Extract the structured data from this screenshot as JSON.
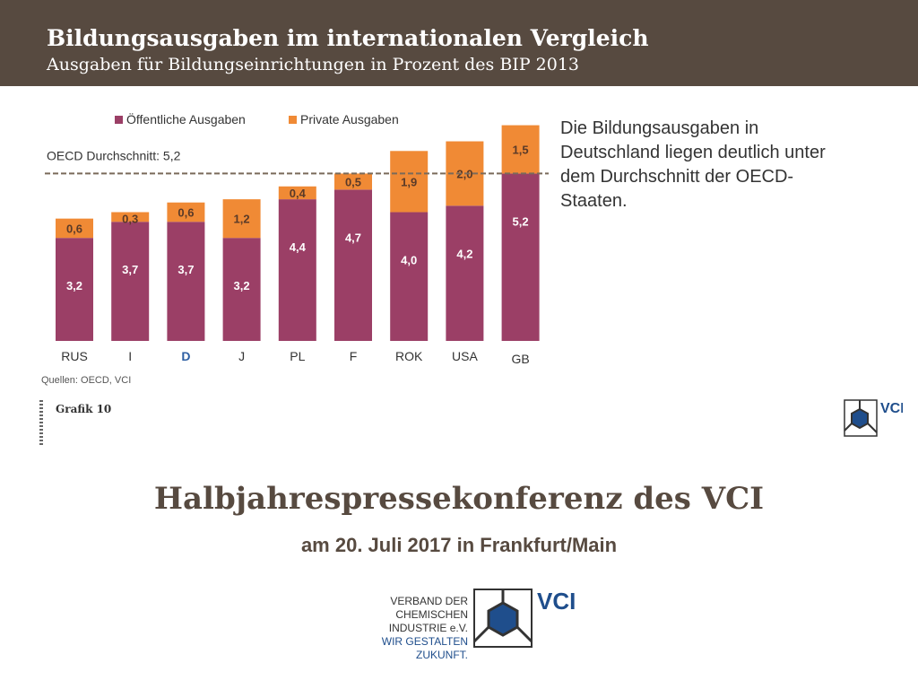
{
  "header": {
    "title": "Bildungsausgaben im internationalen Vergleich",
    "subtitle": "Ausgaben für Bildungseinrichtungen in Prozent des BIP 2013"
  },
  "chart_data": {
    "type": "bar",
    "stacked": true,
    "categories": [
      "RUS",
      "I",
      "D",
      "J",
      "PL",
      "F",
      "ROK",
      "USA",
      "GB"
    ],
    "highlight_category": "D",
    "series": [
      {
        "name": "Öffentliche Ausgaben",
        "color": "#9b3f66",
        "values": [
          3.2,
          3.7,
          3.7,
          3.2,
          4.4,
          4.7,
          4.0,
          4.2,
          5.2
        ],
        "labels": [
          "3,2",
          "3,7",
          "3,7",
          "3,2",
          "4,4",
          "4,7",
          "4,0",
          "4,2",
          "5,2"
        ]
      },
      {
        "name": "Private Ausgaben",
        "color": "#f08a35",
        "values": [
          0.6,
          0.3,
          0.6,
          1.2,
          0.4,
          0.5,
          1.9,
          2.0,
          1.5
        ],
        "labels": [
          "0,6",
          "0,3",
          "0,6",
          "1,2",
          "0,4",
          "0,5",
          "1,9",
          "2,0",
          "1,5"
        ]
      }
    ],
    "reference_line": {
      "label": "OECD Durchschnitt: 5,2",
      "value": 5.2
    },
    "ylim": [
      0,
      6.8
    ],
    "legend_position": "top",
    "grid": false
  },
  "side_text": "Die Bildungsausgaben in Deutschland liegen deutlich unter dem Durchschnitt der OECD-Staaten.",
  "source": "Quellen: OECD, VCI",
  "grafik_label": "Grafik 10",
  "logo": {
    "brand": "VCI",
    "line1": "VERBAND DER",
    "line2": "CHEMISCHEN INDUSTRIE e.V.",
    "line3": "WIR GESTALTEN ZUKUNFT."
  },
  "main": {
    "title": "Halbjahrespressekonferenz des VCI",
    "subtitle": "am 20. Juli 2017 in Frankfurt/Main"
  }
}
